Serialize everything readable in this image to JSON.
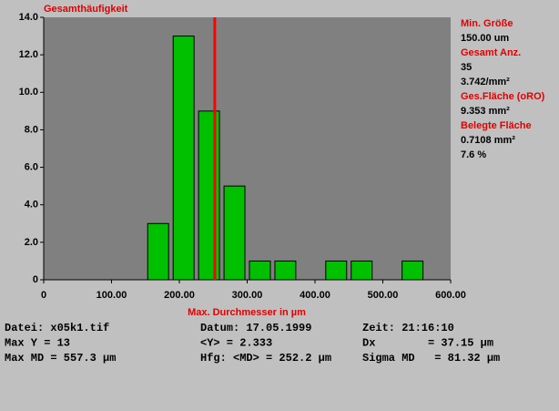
{
  "chart_data": {
    "type": "histogram",
    "y_title": "Gesamthäufigkeit",
    "x_title": "Max. Durchmesser in µm",
    "bins": [
      0,
      37.5,
      75,
      112.5,
      150,
      187.5,
      225,
      262.5,
      300,
      337.5,
      375,
      412.5,
      450,
      487.5,
      525,
      562.5,
      600
    ],
    "counts": [
      0,
      0,
      0,
      0,
      3,
      13,
      9,
      5,
      1,
      1,
      0,
      1,
      1,
      0,
      1,
      0
    ],
    "color": "#00c000",
    "plot_background": "#808080",
    "xlim": [
      0,
      600
    ],
    "xticks": [
      0,
      {
        "value": 100,
        "label": "100.00"
      },
      {
        "value": 200,
        "label": "200.00"
      },
      {
        "value": 300,
        "label": "300.00"
      },
      {
        "value": 400,
        "label": "400.00"
      },
      {
        "value": 500,
        "label": "500.00"
      },
      {
        "value": 600,
        "label": "600.00"
      }
    ],
    "ylim": [
      0,
      14
    ],
    "yticks": [
      0,
      {
        "value": 2,
        "label": "2.0"
      },
      {
        "value": 4,
        "label": "4.0"
      },
      {
        "value": 6,
        "label": "6.0"
      },
      {
        "value": 8,
        "label": "8.0"
      },
      {
        "value": 10,
        "label": "10.0"
      },
      {
        "value": 12,
        "label": "12.0"
      },
      {
        "value": 14,
        "label": "14.0"
      }
    ],
    "vline": {
      "value": 252.2,
      "color": "#ff0000"
    }
  },
  "side_panel": [
    {
      "label": "Min. Größe",
      "lines": [
        "150.00 um"
      ]
    },
    {
      "label": "Gesamt Anz.",
      "lines": [
        "35",
        "3.742/mm²"
      ]
    },
    {
      "label": "Ges.Fläche (oRO)",
      "lines": [
        "9.353 mm²"
      ]
    },
    {
      "label": "Belegte Fläche",
      "lines": [
        "0.7108 mm²",
        "7.6 %"
      ]
    }
  ],
  "info": [
    [
      "Datei: x05k1.tif",
      "Datum: 17.05.1999",
      "Zeit: 21:16:10"
    ],
    [
      "Max Y = 13",
      "<Y> = 2.333",
      "Dx        = 37.15 µm"
    ],
    [
      "Max MD = 557.3 µm",
      "Hfg: <MD> = 252.2 µm",
      "Sigma MD   = 81.32 µm"
    ]
  ]
}
